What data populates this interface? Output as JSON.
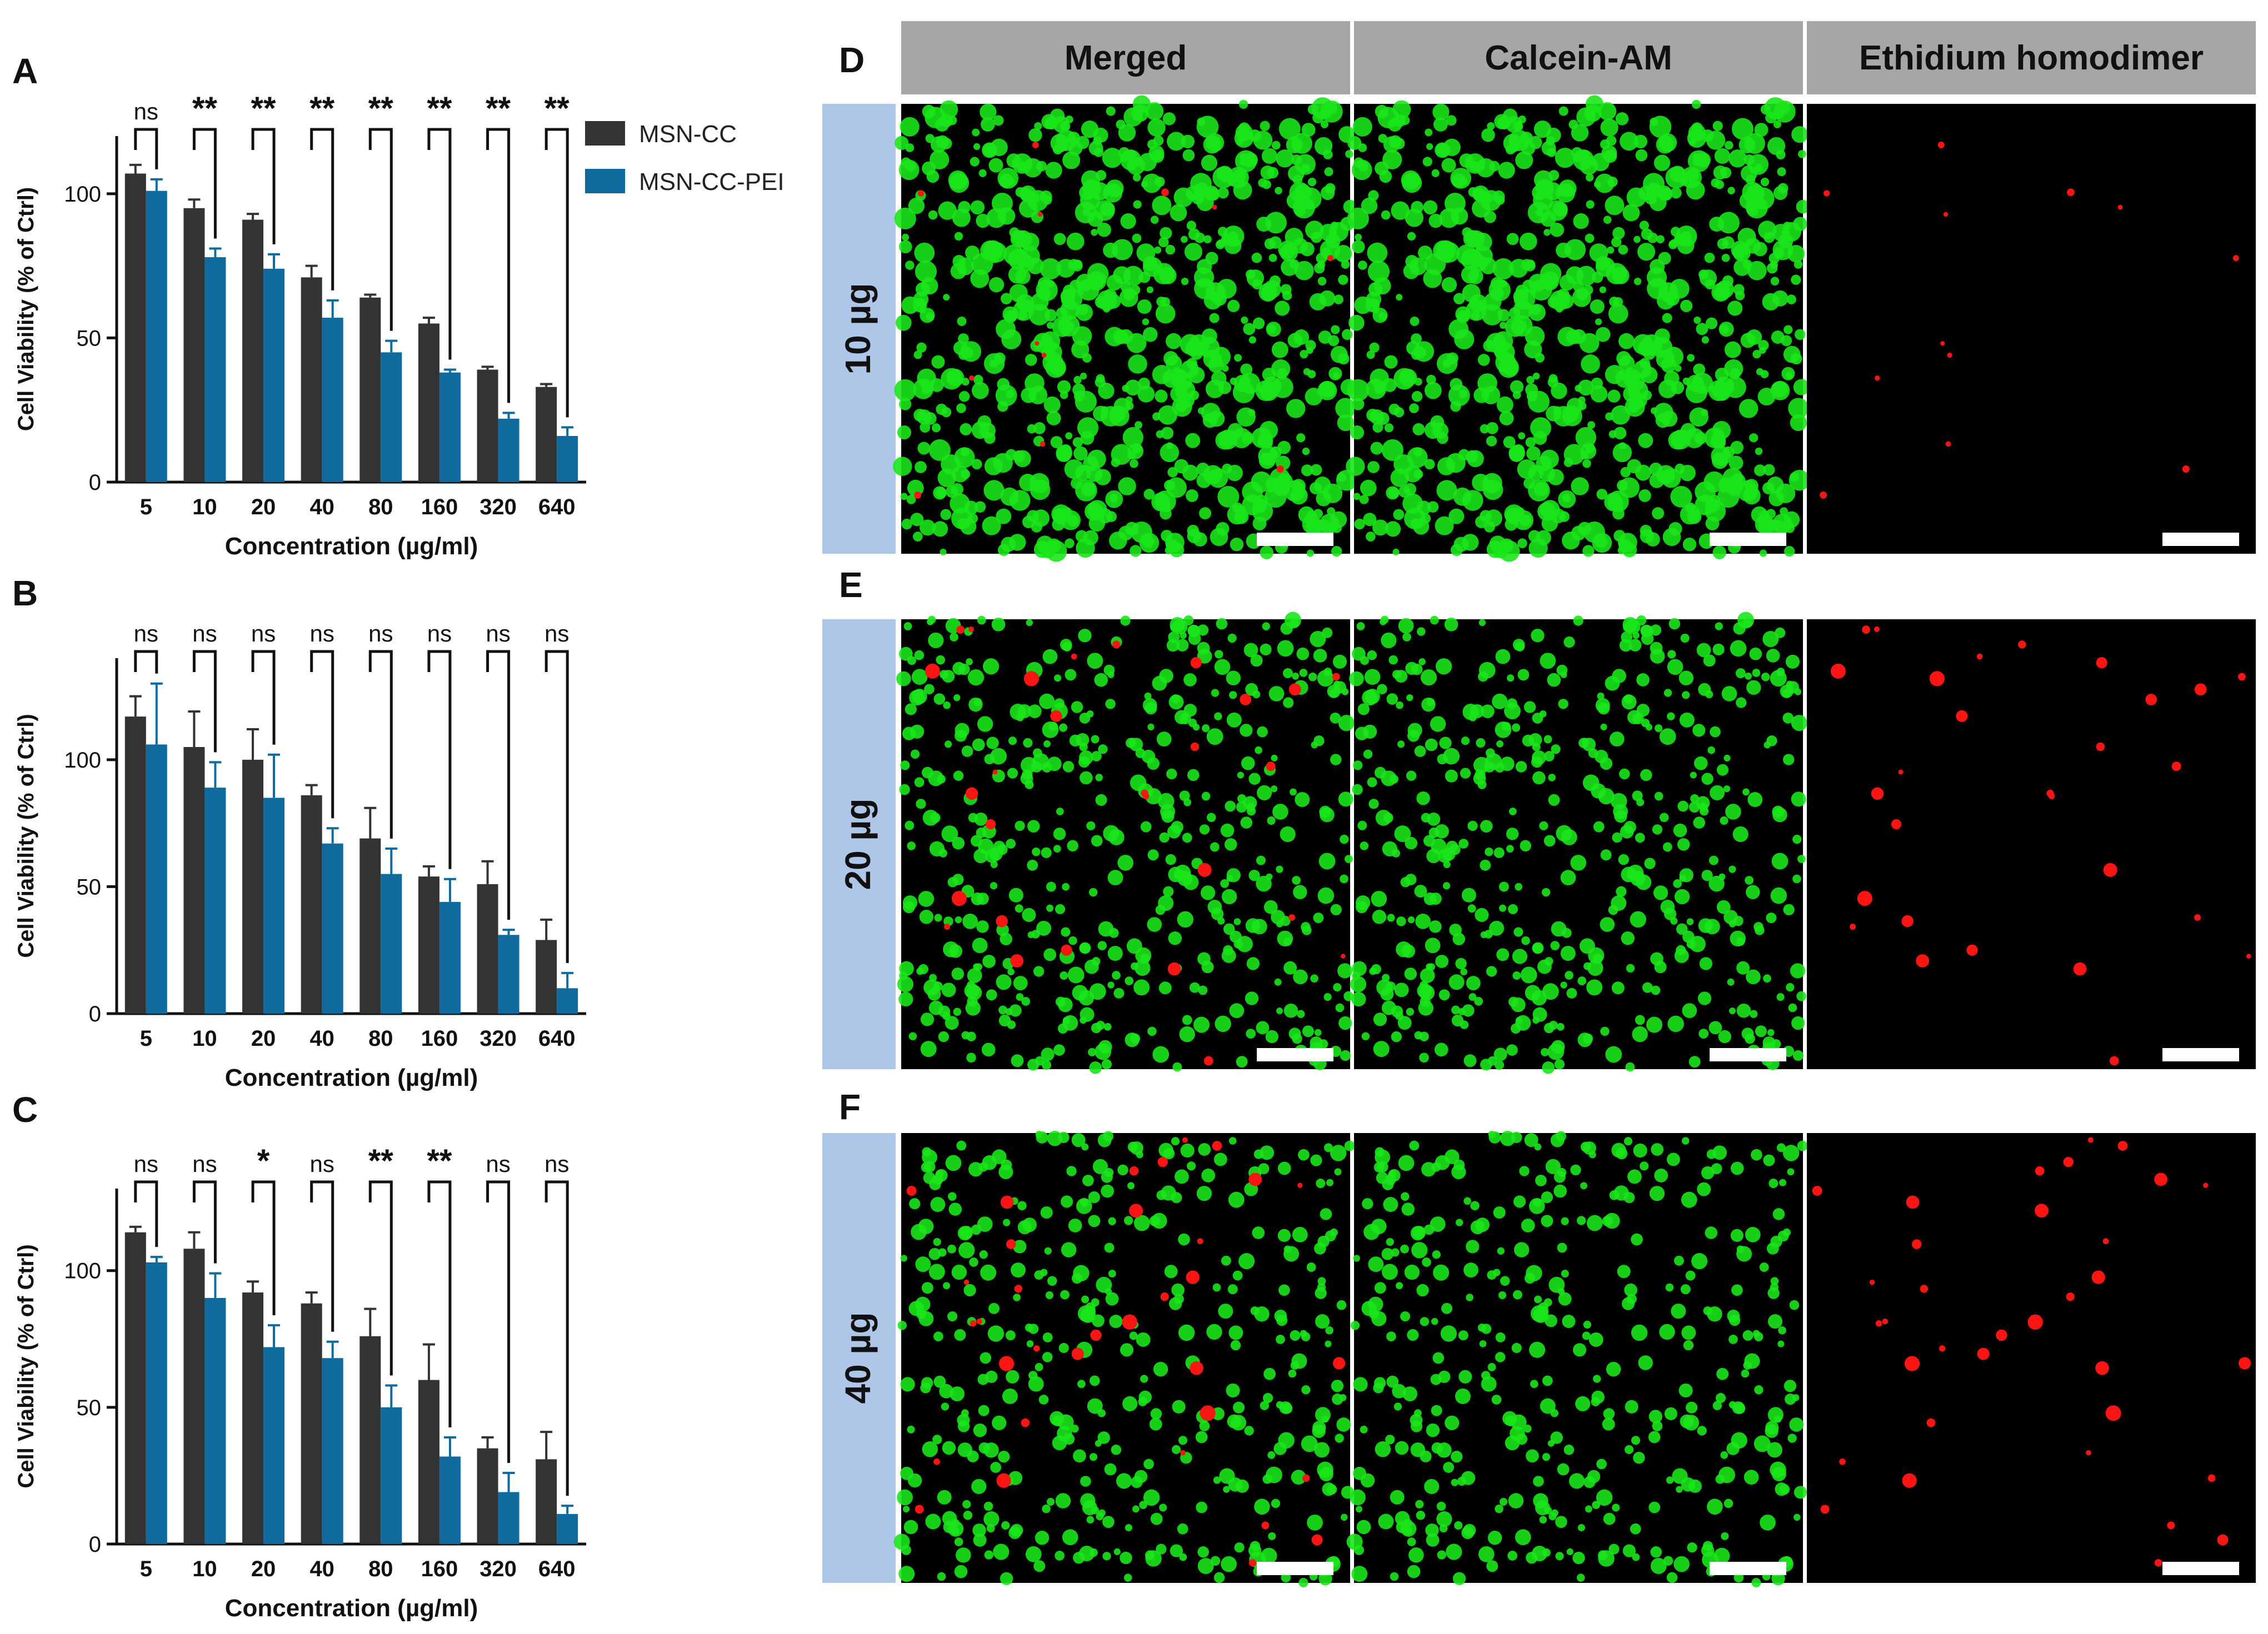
{
  "colors": {
    "msn_cc": "#333333",
    "msn_cc_pei": "#0f6a9e",
    "header_bg": "#a6a6a6",
    "row_label_bg": "#aec6e7",
    "cell_green": "#19e619",
    "cell_red": "#ff1414",
    "image_bg": "#000000"
  },
  "chart_data": [
    {
      "type": "bar",
      "panel_letter": "A",
      "categories": [
        "5",
        "10",
        "20",
        "40",
        "80",
        "160",
        "320",
        "640"
      ],
      "series": [
        {
          "name": "MSN-CC",
          "values": [
            107,
            95,
            91,
            71,
            64,
            55,
            39,
            33
          ],
          "errors": [
            3,
            3,
            2,
            4,
            1,
            2,
            1,
            1
          ]
        },
        {
          "name": "MSN-CC-PEI",
          "values": [
            101,
            78,
            74,
            57,
            45,
            38,
            22,
            16
          ],
          "errors": [
            4,
            3,
            5,
            6,
            4,
            1,
            2,
            3
          ]
        }
      ],
      "significance": [
        "ns",
        "**",
        "**",
        "**",
        "**",
        "**",
        "**",
        "**"
      ],
      "xlabel": "Concentration (µg/ml)",
      "ylabel": "Cell Viability (% of Ctrl)",
      "ylim": [
        0,
        120
      ],
      "yticks": [
        0,
        50,
        100
      ],
      "legend": {
        "placement": "top-right",
        "entries": [
          "MSN-CC",
          "MSN-CC-PEI"
        ]
      }
    },
    {
      "type": "bar",
      "panel_letter": "B",
      "categories": [
        "5",
        "10",
        "20",
        "40",
        "80",
        "160",
        "320",
        "640"
      ],
      "series": [
        {
          "name": "MSN-CC",
          "values": [
            117,
            105,
            100,
            86,
            69,
            54,
            51,
            29
          ],
          "errors": [
            8,
            14,
            12,
            4,
            12,
            4,
            9,
            8
          ]
        },
        {
          "name": "MSN-CC-PEI",
          "values": [
            106,
            89,
            85,
            67,
            55,
            44,
            31,
            10
          ],
          "errors": [
            24,
            10,
            17,
            6,
            10,
            9,
            2,
            6
          ]
        }
      ],
      "significance": [
        "ns",
        "ns",
        "ns",
        "ns",
        "ns",
        "ns",
        "ns",
        "ns"
      ],
      "xlabel": "Concentration (µg/ml)",
      "ylabel": "Cell Viability (% of Ctrl)",
      "ylim": [
        0,
        140
      ],
      "yticks": [
        0,
        50,
        100
      ]
    },
    {
      "type": "bar",
      "panel_letter": "C",
      "categories": [
        "5",
        "10",
        "20",
        "40",
        "80",
        "160",
        "320",
        "640"
      ],
      "series": [
        {
          "name": "MSN-CC",
          "values": [
            114,
            108,
            92,
            88,
            76,
            60,
            35,
            31
          ],
          "errors": [
            2,
            6,
            4,
            4,
            10,
            13,
            4,
            10
          ]
        },
        {
          "name": "MSN-CC-PEI",
          "values": [
            103,
            90,
            72,
            68,
            50,
            32,
            19,
            11
          ],
          "errors": [
            2,
            9,
            8,
            6,
            8,
            7,
            7,
            3
          ]
        }
      ],
      "significance": [
        "ns",
        "ns",
        "*",
        "ns",
        "**",
        "**",
        "ns",
        "ns"
      ],
      "xlabel": "Concentration (µg/ml)",
      "ylabel": "Cell Viability (% of Ctrl)",
      "ylim": [
        0,
        130
      ],
      "yticks": [
        0,
        50,
        100
      ]
    }
  ],
  "micrographs": {
    "columns": [
      "Merged",
      "Calcein-AM",
      "Ethidium homodimer"
    ],
    "rows": [
      {
        "panel_letter": "D",
        "label": "10 µg",
        "green_density": 0.85,
        "red_count": 12
      },
      {
        "panel_letter": "E",
        "label": "20 µg",
        "green_density": 0.55,
        "red_count": 28
      },
      {
        "panel_letter": "F",
        "label": "40 µg",
        "green_density": 0.45,
        "red_count": 34
      }
    ],
    "channels": [
      "merged",
      "green",
      "red"
    ]
  }
}
